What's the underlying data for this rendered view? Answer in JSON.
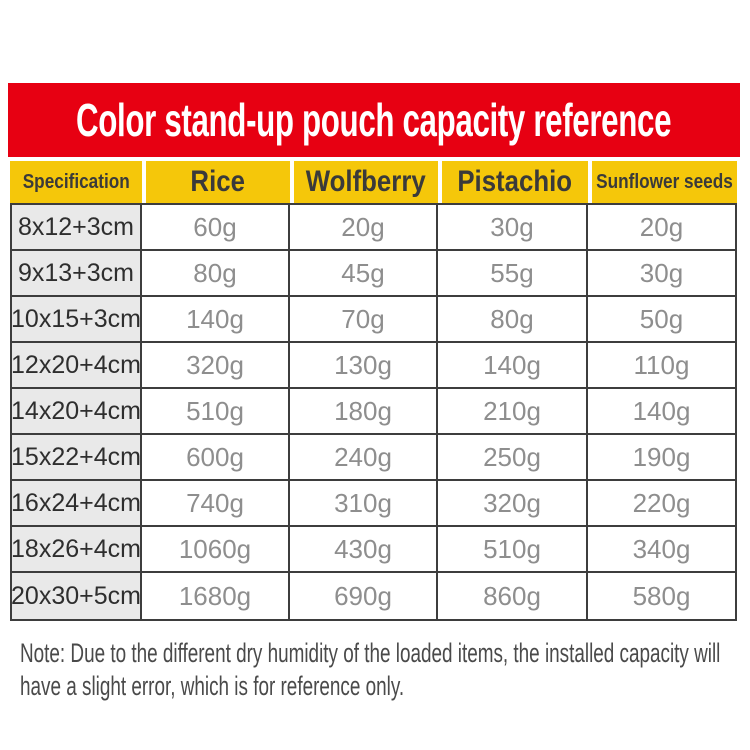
{
  "chart_data": {
    "type": "table",
    "title": "Color stand-up pouch capacity reference",
    "columns": [
      "Specification",
      "Rice",
      "Wolfberry",
      "Pistachio",
      "Sunflower seeds"
    ],
    "rows": [
      [
        "8x12+3cm",
        "60g",
        "20g",
        "30g",
        "20g"
      ],
      [
        "9x13+3cm",
        "80g",
        "45g",
        "55g",
        "30g"
      ],
      [
        "10x15+3cm",
        "140g",
        "70g",
        "80g",
        "50g"
      ],
      [
        "12x20+4cm",
        "320g",
        "130g",
        "140g",
        "110g"
      ],
      [
        "14x20+4cm",
        "510g",
        "180g",
        "210g",
        "140g"
      ],
      [
        "15x22+4cm",
        "600g",
        "240g",
        "250g",
        "190g"
      ],
      [
        "16x24+4cm",
        "740g",
        "310g",
        "320g",
        "220g"
      ],
      [
        "18x26+4cm",
        "1060g",
        "430g",
        "510g",
        "340g"
      ],
      [
        "20x30+5cm",
        "1680g",
        "690g",
        "860g",
        "580g"
      ]
    ],
    "note": "Note: Due to the different dry humidity of the loaded items, the installed capacity will have a slight error, which is for reference only."
  },
  "colors": {
    "banner_red": "#E70012",
    "header_yellow": "#F5C70A",
    "spec_cell_grey": "#E9E9E9",
    "border_dark": "#3D3D3D",
    "value_text_grey": "#8E8E8E",
    "title_text": "#FFFFFF"
  }
}
